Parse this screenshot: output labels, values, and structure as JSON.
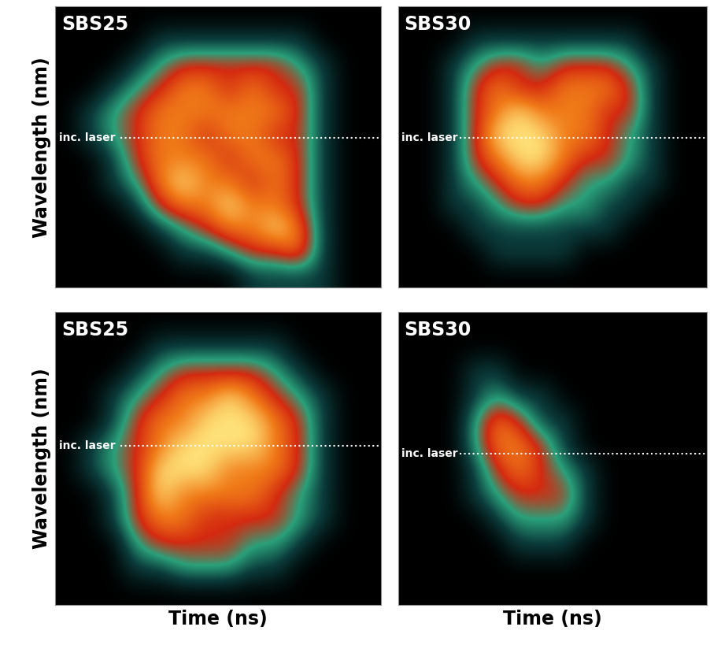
{
  "chart_data": [
    {
      "type": "heatmap",
      "title": "SBS25",
      "y_label": "Wavelength (nm)",
      "tick_labels": false,
      "annotation": "inc. laser",
      "inc_laser_row": 5.1,
      "clim": [
        0,
        5
      ],
      "cells": [
        [
          0,
          0,
          0,
          0,
          0,
          0,
          0,
          0,
          0,
          0,
          0,
          0,
          0,
          0
        ],
        [
          0,
          0,
          0,
          0,
          1,
          1,
          1,
          1,
          1,
          1,
          1,
          0,
          0,
          0
        ],
        [
          0,
          0,
          0,
          1,
          2,
          3,
          3,
          3,
          3,
          3,
          2,
          1,
          0,
          0
        ],
        [
          0,
          0,
          1,
          2,
          3,
          4,
          4,
          3,
          4,
          3,
          3,
          1,
          0,
          0
        ],
        [
          0,
          1,
          2,
          3,
          4,
          4,
          4,
          4,
          4,
          4,
          3,
          1,
          0,
          0
        ],
        [
          0,
          1,
          2,
          3,
          4,
          4,
          3,
          4,
          4,
          3,
          3,
          1,
          0,
          0
        ],
        [
          0,
          0,
          1,
          3,
          4,
          4,
          4,
          3,
          4,
          4,
          3,
          1,
          0,
          0
        ],
        [
          0,
          0,
          1,
          2,
          4,
          5,
          4,
          4,
          3,
          4,
          3,
          1,
          0,
          0
        ],
        [
          0,
          0,
          0,
          1,
          3,
          4,
          4,
          5,
          4,
          4,
          3,
          1,
          0,
          0
        ],
        [
          0,
          0,
          0,
          0,
          1,
          2,
          3,
          4,
          4,
          5,
          4,
          1,
          0,
          0
        ],
        [
          0,
          0,
          0,
          0,
          0,
          1,
          1,
          2,
          3,
          3,
          4,
          1,
          0,
          0
        ],
        [
          0,
          0,
          0,
          0,
          0,
          0,
          0,
          0,
          1,
          1,
          1,
          1,
          0,
          0
        ]
      ]
    },
    {
      "type": "heatmap",
      "title": "SBS30",
      "tick_labels": false,
      "annotation": "inc. laser",
      "inc_laser_row": 5.1,
      "clim": [
        0,
        5
      ],
      "cells": [
        [
          0,
          0,
          0,
          0,
          0,
          0,
          0,
          0,
          0,
          0,
          0,
          0,
          0,
          0
        ],
        [
          0,
          0,
          0,
          1,
          1,
          1,
          1,
          1,
          1,
          1,
          1,
          0,
          0,
          0
        ],
        [
          0,
          0,
          1,
          2,
          3,
          3,
          2,
          3,
          3,
          3,
          2,
          1,
          0,
          0
        ],
        [
          0,
          0,
          1,
          3,
          4,
          3,
          3,
          4,
          4,
          4,
          3,
          1,
          0,
          0
        ],
        [
          0,
          0,
          1,
          3,
          4,
          5,
          4,
          4,
          4,
          3,
          3,
          1,
          0,
          0
        ],
        [
          0,
          0,
          1,
          3,
          5,
          5,
          5,
          4,
          4,
          3,
          2,
          1,
          0,
          0
        ],
        [
          0,
          0,
          1,
          3,
          4,
          5,
          5,
          4,
          3,
          3,
          2,
          1,
          0,
          0
        ],
        [
          0,
          0,
          1,
          2,
          3,
          4,
          4,
          3,
          2,
          2,
          1,
          1,
          0,
          0
        ],
        [
          0,
          0,
          1,
          1,
          2,
          3,
          3,
          2,
          2,
          1,
          1,
          0,
          0,
          0
        ],
        [
          0,
          0,
          0,
          1,
          1,
          1,
          1,
          1,
          1,
          1,
          0,
          0,
          0,
          0
        ],
        [
          0,
          0,
          0,
          0,
          1,
          1,
          1,
          1,
          0,
          0,
          0,
          0,
          0,
          0
        ],
        [
          0,
          0,
          0,
          0,
          0,
          0,
          0,
          0,
          0,
          0,
          0,
          0,
          0,
          0
        ]
      ]
    },
    {
      "type": "heatmap",
      "title": "SBS25",
      "y_label": "Wavelength (nm)",
      "x_label": "Time (ns)",
      "tick_labels": false,
      "annotation": "inc. laser",
      "inc_laser_row": 5.0,
      "clim": [
        0,
        5
      ],
      "cells": [
        [
          0,
          0,
          0,
          0,
          0,
          0,
          0,
          0,
          0,
          0,
          0,
          0,
          0,
          0
        ],
        [
          0,
          0,
          0,
          0,
          1,
          1,
          1,
          1,
          1,
          1,
          0,
          0,
          0,
          0
        ],
        [
          0,
          0,
          0,
          1,
          2,
          3,
          3,
          3,
          3,
          2,
          1,
          0,
          0,
          0
        ],
        [
          0,
          0,
          1,
          2,
          3,
          4,
          4,
          5,
          4,
          3,
          2,
          1,
          0,
          0
        ],
        [
          0,
          0,
          1,
          3,
          4,
          4,
          5,
          5,
          5,
          4,
          3,
          1,
          0,
          0
        ],
        [
          0,
          1,
          2,
          3,
          4,
          5,
          5,
          5,
          5,
          4,
          3,
          1,
          0,
          0
        ],
        [
          0,
          1,
          2,
          3,
          5,
          5,
          5,
          4,
          4,
          4,
          3,
          1,
          0,
          0
        ],
        [
          0,
          0,
          1,
          3,
          5,
          4,
          4,
          4,
          4,
          3,
          2,
          1,
          0,
          0
        ],
        [
          0,
          0,
          1,
          3,
          4,
          4,
          3,
          3,
          3,
          3,
          2,
          1,
          0,
          0
        ],
        [
          0,
          0,
          0,
          2,
          3,
          3,
          3,
          3,
          2,
          2,
          1,
          0,
          0,
          0
        ],
        [
          0,
          0,
          0,
          1,
          1,
          2,
          2,
          2,
          1,
          1,
          0,
          0,
          0,
          0
        ],
        [
          0,
          0,
          0,
          0,
          0,
          0,
          0,
          0,
          0,
          0,
          0,
          0,
          0,
          0
        ]
      ]
    },
    {
      "type": "heatmap",
      "title": "SBS30",
      "x_label": "Time (ns)",
      "tick_labels": false,
      "annotation": "inc. laser",
      "inc_laser_row": 5.3,
      "clim": [
        0,
        5
      ],
      "cells": [
        [
          0,
          0,
          0,
          0,
          0,
          0,
          0,
          0,
          0,
          0,
          0,
          0,
          0,
          0
        ],
        [
          0,
          0,
          0,
          0,
          0,
          0,
          0,
          0,
          0,
          0,
          0,
          0,
          0,
          0
        ],
        [
          0,
          0,
          0,
          1,
          1,
          0,
          0,
          0,
          0,
          0,
          0,
          0,
          0,
          0
        ],
        [
          0,
          0,
          0,
          1,
          2,
          1,
          1,
          0,
          0,
          0,
          0,
          0,
          0,
          0
        ],
        [
          0,
          0,
          0,
          2,
          4,
          3,
          1,
          1,
          0,
          0,
          0,
          0,
          0,
          0
        ],
        [
          0,
          0,
          0,
          2,
          4,
          4,
          3,
          1,
          0,
          0,
          0,
          0,
          0,
          0
        ],
        [
          0,
          0,
          0,
          1,
          3,
          4,
          3,
          2,
          1,
          0,
          0,
          0,
          0,
          0
        ],
        [
          0,
          0,
          0,
          1,
          2,
          3,
          3,
          3,
          1,
          0,
          0,
          0,
          0,
          0
        ],
        [
          0,
          0,
          0,
          0,
          1,
          2,
          2,
          2,
          1,
          0,
          0,
          0,
          0,
          0
        ],
        [
          0,
          0,
          0,
          0,
          0,
          1,
          1,
          1,
          0,
          0,
          0,
          0,
          0,
          0
        ],
        [
          0,
          0,
          0,
          0,
          0,
          0,
          0,
          0,
          0,
          0,
          0,
          0,
          0,
          0
        ],
        [
          0,
          0,
          0,
          0,
          0,
          0,
          0,
          0,
          0,
          0,
          0,
          0,
          0,
          0
        ]
      ]
    }
  ]
}
